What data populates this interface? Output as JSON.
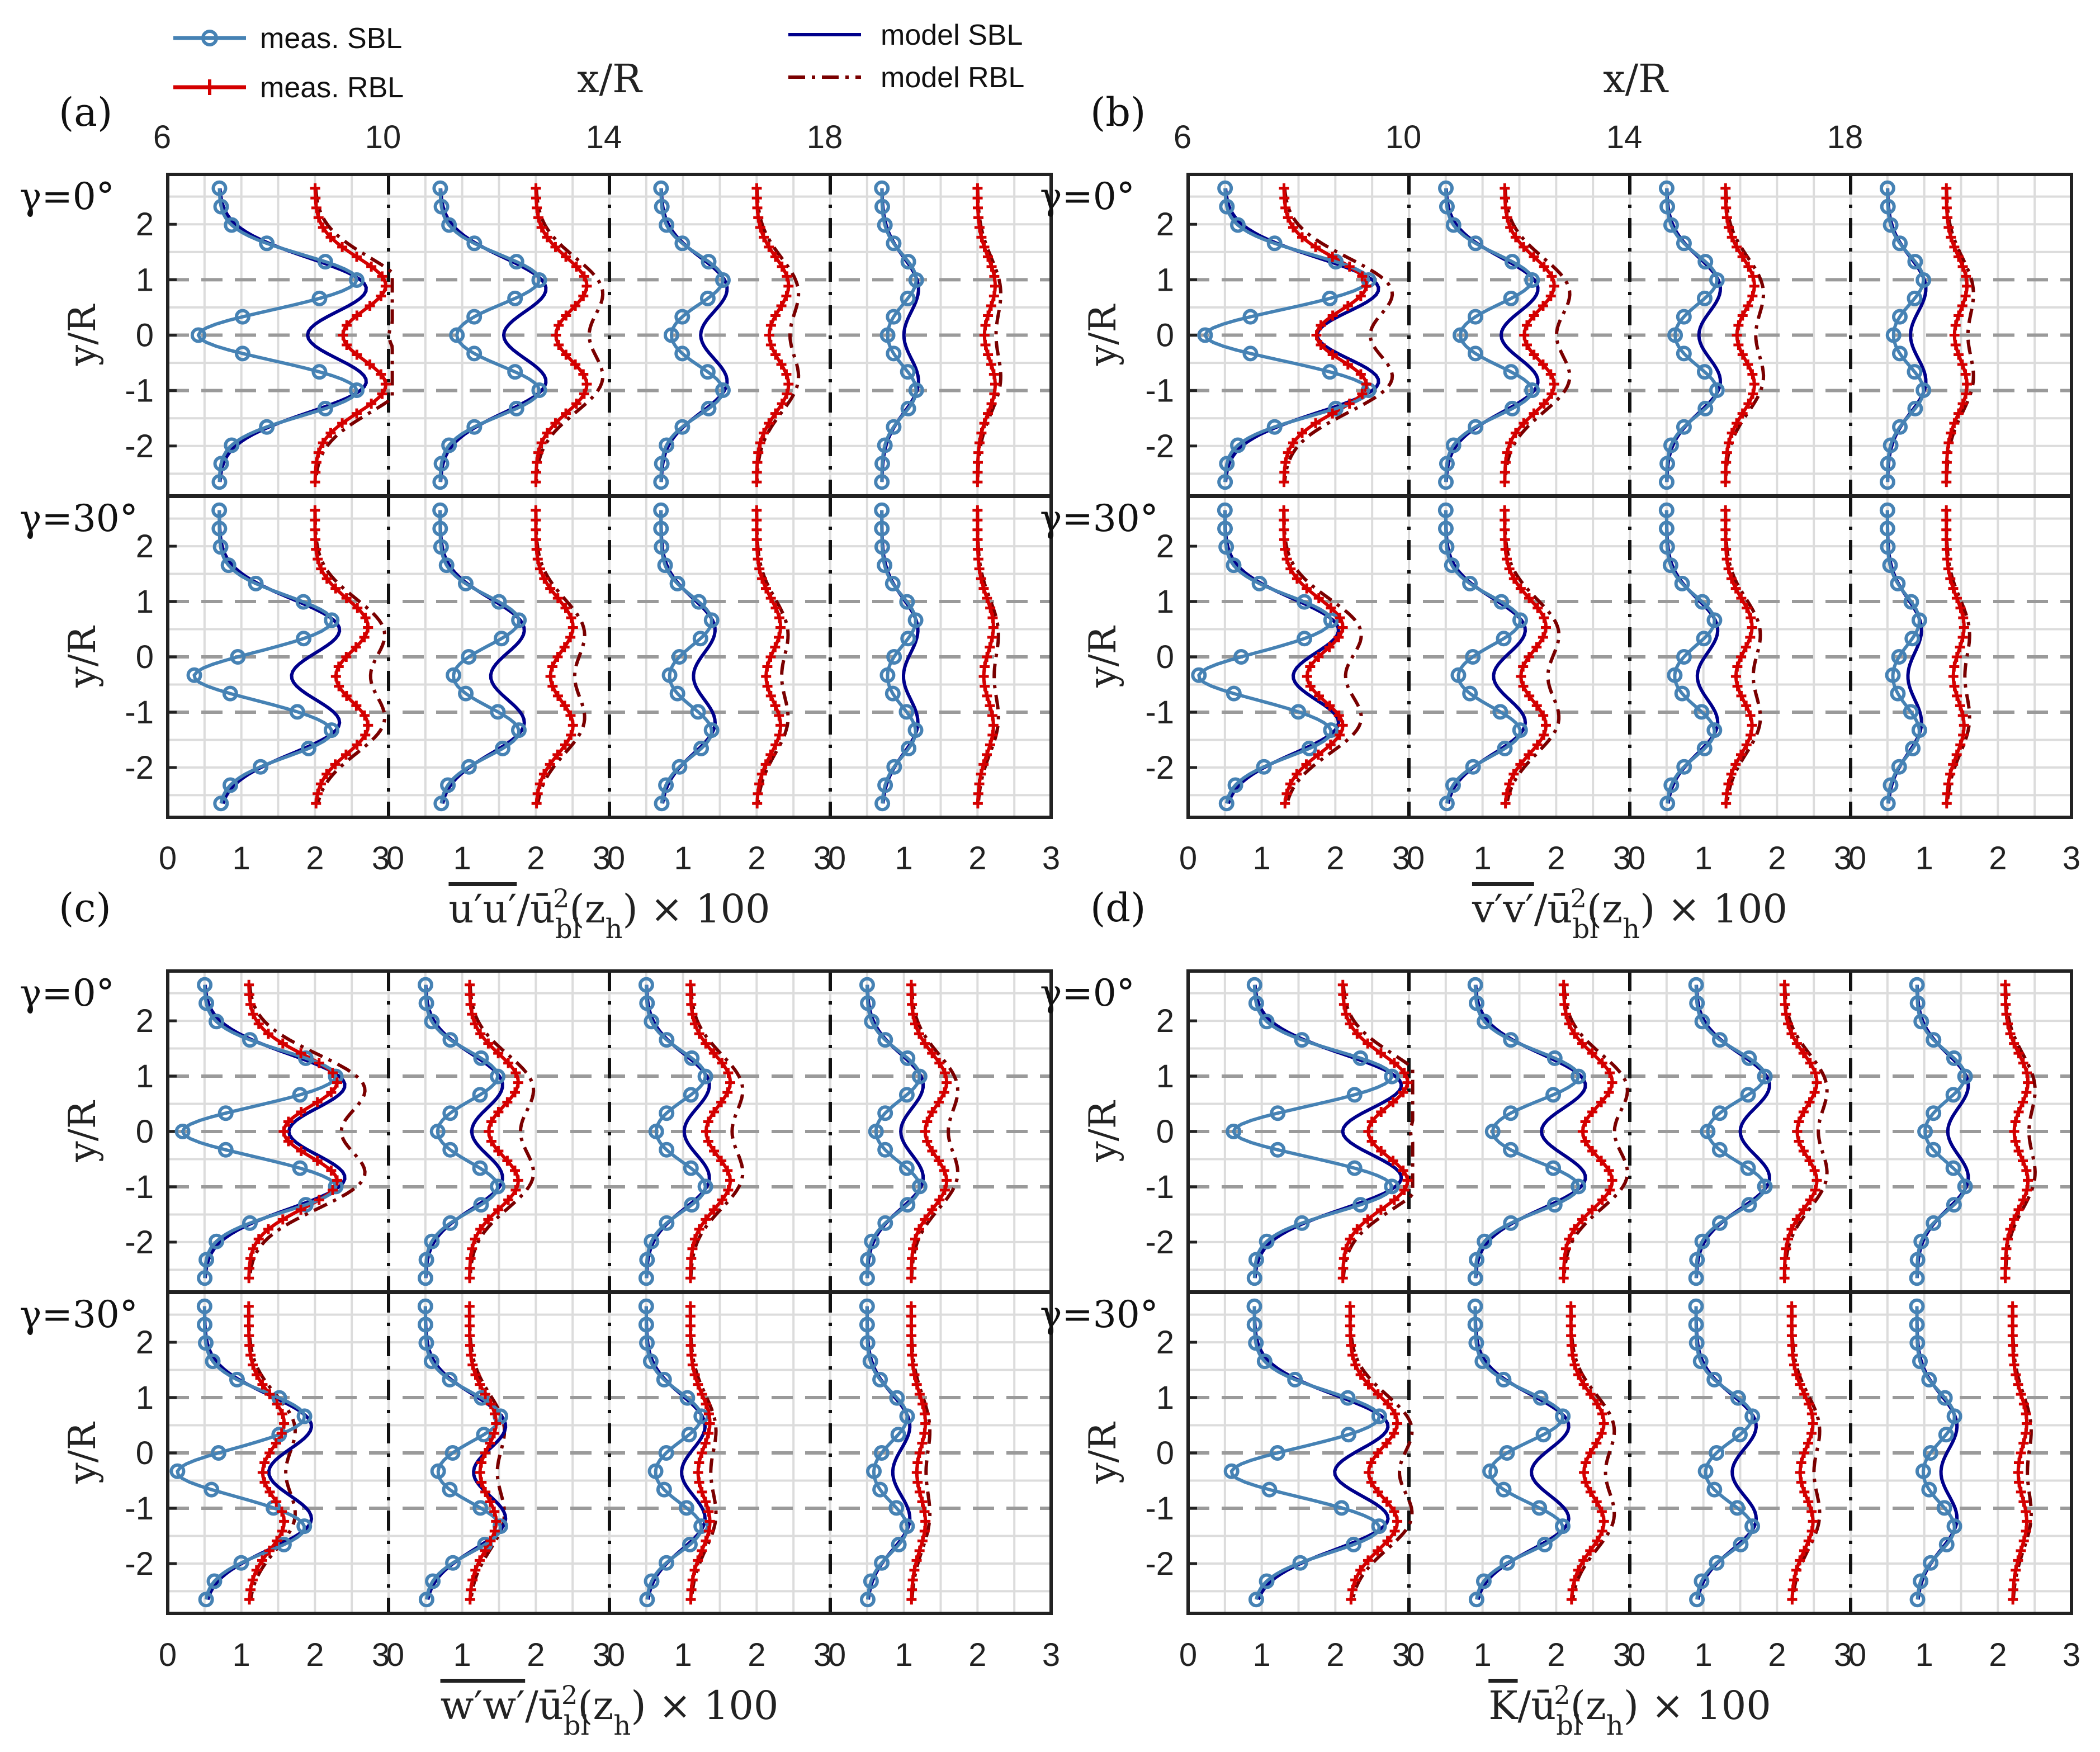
{
  "legend": {
    "items": [
      {
        "label": "meas. SBL",
        "color": "#4682b4",
        "style": "marker-line"
      },
      {
        "label": "meas. RBL",
        "color": "#d40000",
        "style": "plus-line"
      },
      {
        "label": "model SBL",
        "color": "#00008b",
        "style": "solid"
      },
      {
        "label": "model RBL",
        "color": "#7a0000",
        "style": "dashdot"
      }
    ]
  },
  "colors": {
    "meas_sbl": "#4682b4",
    "meas_rbl": "#d40000",
    "model_sbl": "#00008b",
    "model_rbl": "#7a0000"
  },
  "row_labels": {
    "gamma0": "γ=0°",
    "gamma30": "γ=30°"
  },
  "y_axis_label": "y/R",
  "top_axis_label": "x/R",
  "top_ticks": [
    "6",
    "10",
    "14",
    "18"
  ],
  "y_ticks": [
    "2",
    "1",
    "0",
    "-1",
    "-2"
  ],
  "x_ticks": [
    "0",
    "1",
    "2",
    "3"
  ],
  "chart_data": [
    {
      "panel": "(a)",
      "type": "line",
      "xlabel": "u'u' / ū_bl²(z_h) × 100",
      "xlabel_main": "u′u′",
      "xlabel_rest": "/ū",
      "xlabel_sub": "bl",
      "xlabel_sup": "2",
      "xlabel_tail": "(z",
      "xlabel_sub2": "h",
      "xlabel_end": ") × 100",
      "stations_xR": [
        6,
        10,
        14,
        18
      ],
      "xlim": [
        0,
        3
      ],
      "ylim": [
        -2.9,
        2.9
      ],
      "ylabel": "y/R",
      "profiles": {
        "g0": {
          "sbl_base": 0.7,
          "sbl_peak": 2.2,
          "rbl_base": 2.0,
          "rbl_peak": 1.2,
          "decay": [
            1,
            0.72,
            0.45,
            0.25
          ]
        },
        "g30": {
          "sbl_base": 0.7,
          "sbl_peak": 1.8,
          "rbl_base": 2.0,
          "rbl_peak": 0.9,
          "decay": [
            1,
            0.7,
            0.45,
            0.3
          ]
        }
      }
    },
    {
      "panel": "(b)",
      "type": "line",
      "xlabel": "v'v' / ū_bl²(z_h) × 100",
      "xlabel_main": "v′v′",
      "xlabel_rest": "/ū",
      "xlabel_sub": "bl",
      "xlabel_sup": "2",
      "xlabel_tail": "(z",
      "xlabel_sub2": "h",
      "xlabel_end": ") × 100",
      "stations_xR": [
        6,
        10,
        14,
        18
      ],
      "xlim": [
        0,
        3
      ],
      "ylim": [
        -2.9,
        2.9
      ],
      "ylabel": "y/R",
      "profiles": {
        "g0": {
          "sbl_base": 0.5,
          "sbl_peak": 2.3,
          "rbl_base": 1.3,
          "rbl_peak": 1.4,
          "decay": [
            1,
            0.6,
            0.35,
            0.25
          ]
        },
        "g30": {
          "sbl_base": 0.5,
          "sbl_peak": 1.7,
          "rbl_base": 1.3,
          "rbl_peak": 1.0,
          "decay": [
            1,
            0.7,
            0.45,
            0.3
          ]
        }
      }
    },
    {
      "panel": "(c)",
      "type": "line",
      "xlabel": "w'w' / ū_bl²(z_h) × 100",
      "xlabel_main": "w′w′",
      "xlabel_rest": "/ū",
      "xlabel_sub": "bl",
      "xlabel_sup": "2",
      "xlabel_tail": "(z",
      "xlabel_sub2": "h",
      "xlabel_end": ") × 100",
      "stations_xR": [
        6,
        10,
        14,
        18
      ],
      "xlim": [
        0,
        3
      ],
      "ylim": [
        -2.9,
        2.9
      ],
      "ylabel": "y/R",
      "profiles": {
        "g0": {
          "sbl_base": 0.5,
          "sbl_peak": 2.1,
          "rbl_base": 1.1,
          "rbl_peak": 1.5,
          "decay": [
            1,
            0.55,
            0.45,
            0.4
          ]
        },
        "g30": {
          "sbl_base": 0.5,
          "sbl_peak": 1.6,
          "rbl_base": 1.1,
          "rbl_peak": 0.6,
          "decay": [
            1,
            0.75,
            0.55,
            0.4
          ]
        }
      }
    },
    {
      "panel": "(d)",
      "type": "line",
      "xlabel": "K / ū_bl²(z_h) × 100",
      "xlabel_main": "K",
      "xlabel_rest": "/ū",
      "xlabel_sub": "bl",
      "xlabel_sup": "2",
      "xlabel_tail": "(z",
      "xlabel_sub2": "h",
      "xlabel_end": ") × 100",
      "stations_xR": [
        6,
        10,
        14,
        18
      ],
      "xlim": [
        0,
        3
      ],
      "ylim": [
        -2.9,
        2.9
      ],
      "ylabel": "y/R",
      "profiles": {
        "g0": {
          "sbl_base": 0.9,
          "sbl_peak": 2.2,
          "rbl_base": 2.1,
          "rbl_peak": 1.1,
          "decay": [
            1,
            0.75,
            0.5,
            0.35
          ]
        },
        "g30": {
          "sbl_base": 0.9,
          "sbl_peak": 2.0,
          "rbl_base": 2.2,
          "rbl_peak": 0.8,
          "decay": [
            1,
            0.7,
            0.45,
            0.3
          ]
        }
      }
    }
  ],
  "panels": [
    {
      "tag": "(a)"
    },
    {
      "tag": "(b)"
    },
    {
      "tag": "(c)"
    },
    {
      "tag": "(d)"
    }
  ]
}
